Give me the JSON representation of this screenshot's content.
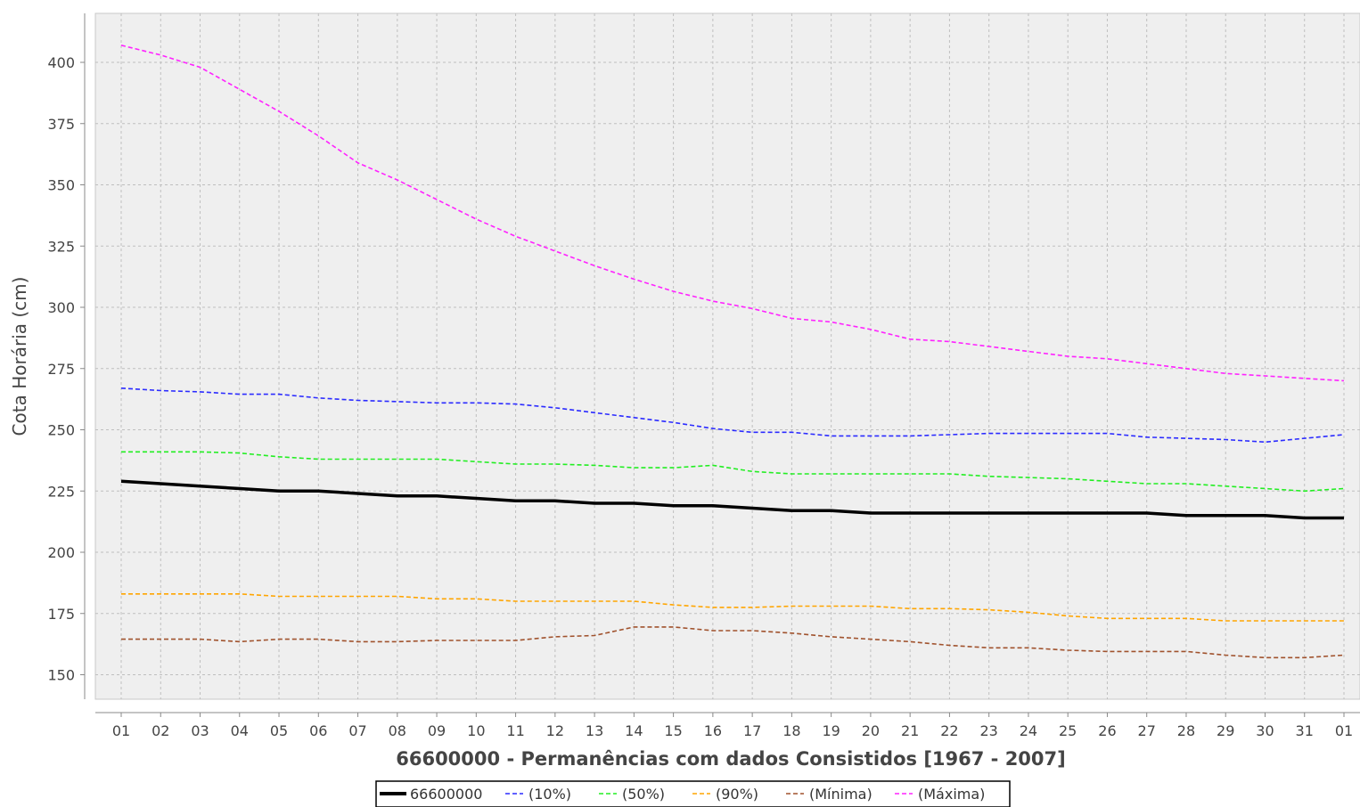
{
  "chart_data": {
    "type": "line",
    "xlabel": "66600000 - Permanências com dados Consistidos [1967 - 2007]",
    "ylabel": "Cota Horária (cm)",
    "ylim": [
      140,
      420
    ],
    "yticks": [
      150,
      175,
      200,
      225,
      250,
      275,
      300,
      325,
      350,
      375,
      400
    ],
    "categories": [
      "01",
      "02",
      "03",
      "04",
      "05",
      "06",
      "07",
      "08",
      "09",
      "10",
      "11",
      "12",
      "13",
      "14",
      "15",
      "16",
      "17",
      "18",
      "19",
      "20",
      "21",
      "22",
      "23",
      "24",
      "25",
      "26",
      "27",
      "28",
      "29",
      "30",
      "31",
      "01"
    ],
    "grid": true,
    "legend_position": "bottom",
    "series": [
      {
        "name": "66600000",
        "color": "#000000",
        "style": "solid",
        "values": [
          229,
          228,
          227,
          226,
          225,
          225,
          224,
          223,
          223,
          222,
          221,
          221,
          220,
          220,
          219,
          219,
          218,
          217,
          217,
          216,
          216,
          216,
          216,
          216,
          216,
          216,
          216,
          215,
          215,
          215,
          214,
          214
        ]
      },
      {
        "name": "(10%)",
        "color": "#2b2bff",
        "style": "dashed",
        "values": [
          267,
          266,
          265.5,
          264.5,
          264.5,
          263,
          262,
          261.5,
          261,
          261,
          260.5,
          259,
          257,
          255,
          253,
          250.5,
          249,
          249,
          247.5,
          247.5,
          247.5,
          248,
          248.5,
          248.5,
          248.5,
          248.5,
          247,
          246.5,
          246,
          245,
          246.5,
          248
        ]
      },
      {
        "name": "(50%)",
        "color": "#22ee22",
        "style": "dashed",
        "values": [
          241,
          241,
          241,
          240.5,
          239,
          238,
          238,
          238,
          238,
          237,
          236,
          236,
          235.5,
          234.5,
          234.5,
          235.5,
          233,
          232,
          232,
          232,
          232,
          232,
          231,
          230.5,
          230,
          229,
          228,
          228,
          227,
          226,
          225,
          226
        ]
      },
      {
        "name": "(90%)",
        "color": "#ffa500",
        "style": "dashed",
        "values": [
          183,
          183,
          183,
          183,
          182,
          182,
          182,
          182,
          181,
          181,
          180,
          180,
          180,
          180,
          178.5,
          177.5,
          177.5,
          178,
          178,
          178,
          177,
          177,
          176.5,
          175.5,
          174,
          173,
          173,
          173,
          172,
          172,
          172,
          172
        ]
      },
      {
        "name": "(Mínima)",
        "color": "#a0522d",
        "style": "dashed",
        "values": [
          164.5,
          164.5,
          164.5,
          163.5,
          164.5,
          164.5,
          163.5,
          163.5,
          164,
          164,
          164,
          165.5,
          166,
          169.5,
          169.5,
          168,
          168,
          167,
          165.5,
          164.5,
          163.5,
          162,
          161,
          161,
          160,
          159.5,
          159.5,
          159.5,
          158,
          157,
          157,
          158
        ]
      },
      {
        "name": "(Máxima)",
        "color": "#ff22ff",
        "style": "dashed",
        "values": [
          407,
          403,
          398,
          389,
          380,
          370,
          359,
          352,
          344,
          336,
          329,
          323,
          317,
          311.5,
          306.5,
          302.5,
          299.5,
          295.5,
          294,
          291,
          287,
          286,
          284,
          282,
          280,
          279,
          277,
          275,
          273,
          272,
          271,
          270
        ]
      }
    ]
  }
}
